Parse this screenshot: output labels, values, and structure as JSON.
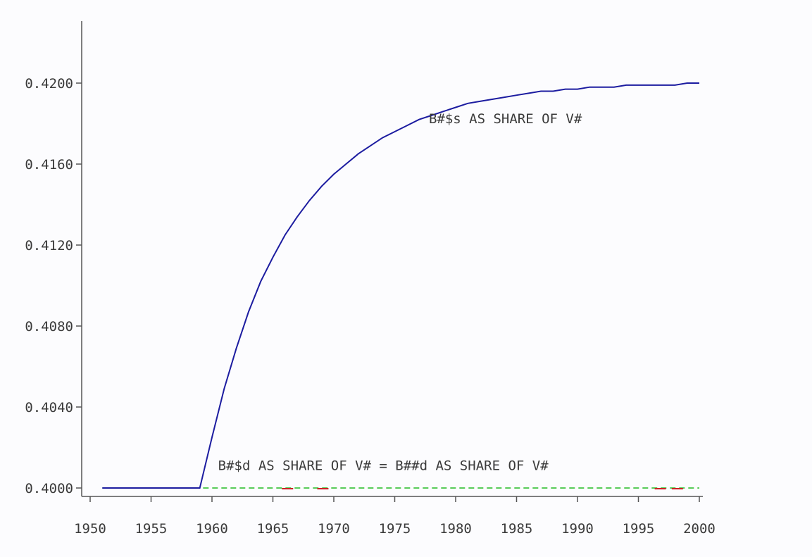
{
  "chart_data": {
    "type": "line",
    "title": "",
    "xlabel": "",
    "ylabel": "",
    "xlim": [
      1950,
      2000
    ],
    "ylim": [
      0.399,
      0.423
    ],
    "x_ticks": [
      1950,
      1955,
      1960,
      1965,
      1970,
      1975,
      1980,
      1985,
      1990,
      1995,
      2000
    ],
    "x_tick_labels": [
      "1950",
      "1955",
      "1960",
      "1965",
      "1970",
      "1975",
      "1980",
      "1985",
      "1990",
      "1995",
      "2000"
    ],
    "y_ticks": [
      0.4,
      0.404,
      0.408,
      0.412,
      0.416,
      0.42
    ],
    "y_tick_labels": [
      "0.4000",
      "0.4040",
      "0.4080",
      "0.4120",
      "0.4160",
      "0.4200"
    ],
    "grid": false,
    "series": [
      {
        "name": "B#$s AS SHARE OF V#",
        "color": "#1c1ca0",
        "style": "solid",
        "x": [
          1951,
          1952,
          1953,
          1954,
          1955,
          1956,
          1957,
          1958,
          1959,
          1960,
          1961,
          1962,
          1963,
          1964,
          1965,
          1966,
          1967,
          1968,
          1969,
          1970,
          1971,
          1972,
          1973,
          1974,
          1975,
          1976,
          1977,
          1978,
          1979,
          1980,
          1981,
          1982,
          1983,
          1984,
          1985,
          1986,
          1987,
          1988,
          1989,
          1990,
          1991,
          1992,
          1993,
          1994,
          1995,
          1996,
          1997,
          1998,
          1999,
          2000
        ],
        "values": [
          0.4,
          0.4,
          0.4,
          0.4,
          0.4,
          0.4,
          0.4,
          0.4,
          0.4,
          0.4025,
          0.4049,
          0.4069,
          0.4087,
          0.4102,
          0.4114,
          0.4125,
          0.4134,
          0.4142,
          0.4149,
          0.4155,
          0.416,
          0.4165,
          0.4169,
          0.4173,
          0.4176,
          0.4179,
          0.4182,
          0.4184,
          0.4186,
          0.4188,
          0.419,
          0.4191,
          0.4192,
          0.4193,
          0.4194,
          0.4195,
          0.4196,
          0.4196,
          0.4197,
          0.4197,
          0.4198,
          0.4198,
          0.4198,
          0.4199,
          0.4199,
          0.4199,
          0.4199,
          0.4199,
          0.42,
          0.42
        ]
      },
      {
        "name": "B#$d AS SHARE OF V# = B##d AS SHARE OF V#",
        "color": "#22bb22",
        "style": "dashed",
        "x": [
          1951,
          1955,
          1960,
          1965,
          1970,
          1975,
          1980,
          1985,
          1990,
          1995,
          2000
        ],
        "values": [
          0.4,
          0.4,
          0.4,
          0.4,
          0.4,
          0.4,
          0.4,
          0.4,
          0.4,
          0.4,
          0.4
        ]
      }
    ],
    "annotations": [
      {
        "text": "B#$s AS SHARE OF V#",
        "x": 1977.8,
        "y": 0.41802
      },
      {
        "text": "B#$d AS SHARE OF V# = B##d AS SHARE OF V#",
        "x": 1960.5,
        "y": 0.40088
      }
    ],
    "colors": {
      "axis": "#555555",
      "text": "#3a3a3a",
      "background": "#fcfcfe",
      "accent_red": "#cc2222"
    }
  }
}
